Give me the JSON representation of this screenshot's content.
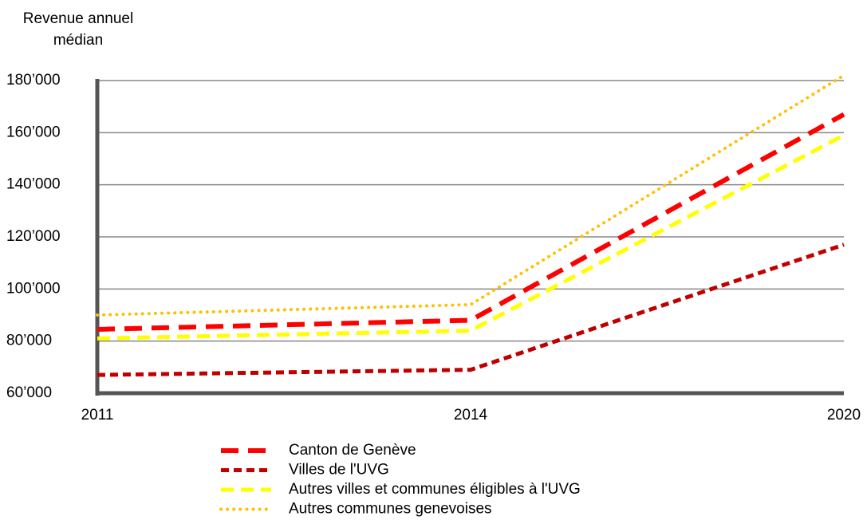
{
  "chart_data": {
    "type": "line",
    "ylabel": [
      "Revenue annuel",
      "médian"
    ],
    "categories": [
      "2011",
      "2014",
      "2020"
    ],
    "ylim": [
      60000,
      180000
    ],
    "yticks": [
      {
        "value": 60000,
        "label": "60’000"
      },
      {
        "value": 80000,
        "label": "80’000"
      },
      {
        "value": 100000,
        "label": "100’000"
      },
      {
        "value": 120000,
        "label": "120’000"
      },
      {
        "value": 140000,
        "label": "140’000"
      },
      {
        "value": 160000,
        "label": "160’000"
      },
      {
        "value": 180000,
        "label": "180’000"
      }
    ],
    "grid": true,
    "series": [
      {
        "name": "Canton de Genève",
        "color": "#ff0000",
        "dash": "long-dash",
        "values": [
          84500,
          88000,
          167000
        ]
      },
      {
        "name": "Villes de l'UVG",
        "color": "#c00000",
        "dash": "short-dash",
        "values": [
          67000,
          69000,
          117000
        ]
      },
      {
        "name": "Autres villes et communes éligibles à l'UVG",
        "color": "#ffff00",
        "dash": "dash",
        "values": [
          81000,
          84000,
          159000
        ]
      },
      {
        "name": "Autres communes genevoises",
        "color": "#ffc000",
        "dash": "dot",
        "values": [
          90000,
          94000,
          182000
        ]
      }
    ]
  }
}
